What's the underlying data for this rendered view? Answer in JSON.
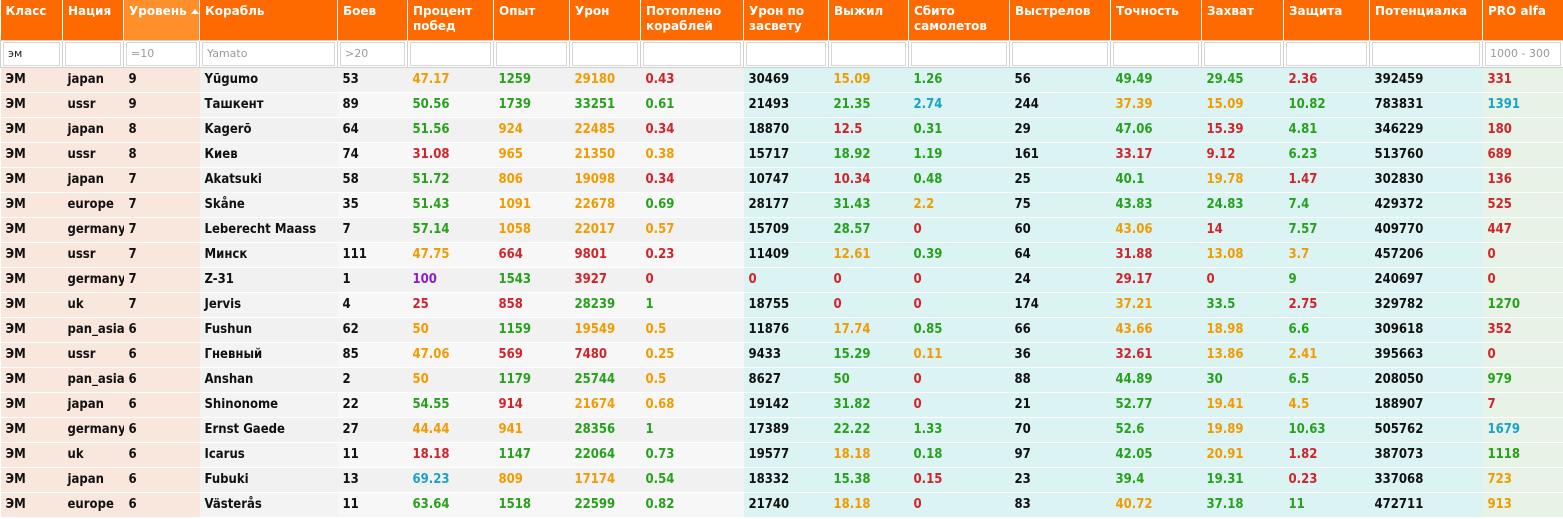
{
  "columns": [
    {
      "key": "class",
      "label": "Класс",
      "filter": {
        "value": "эм",
        "placeholder": ""
      }
    },
    {
      "key": "nation",
      "label": "Нация",
      "filter": {
        "value": "",
        "placeholder": ""
      }
    },
    {
      "key": "tier",
      "label": "Уровень",
      "filter": {
        "value": "",
        "placeholder": "=10"
      }
    },
    {
      "key": "ship",
      "label": "Корабль",
      "filter": {
        "value": "",
        "placeholder": "Yamato"
      }
    },
    {
      "key": "battles",
      "label": "Боев",
      "filter": {
        "value": "",
        "placeholder": ">20"
      }
    },
    {
      "key": "winrate",
      "label": "Процент побед",
      "filter": {
        "value": "",
        "placeholder": ""
      }
    },
    {
      "key": "xp",
      "label": "Опыт",
      "filter": {
        "value": "",
        "placeholder": ""
      }
    },
    {
      "key": "damage",
      "label": "Урон",
      "filter": {
        "value": "",
        "placeholder": ""
      }
    },
    {
      "key": "sunk",
      "label": "Потоплено кораблей",
      "filter": {
        "value": "",
        "placeholder": ""
      }
    },
    {
      "key": "spot_damage",
      "label": "Урон по засвету",
      "filter": {
        "value": "",
        "placeholder": ""
      }
    },
    {
      "key": "survived",
      "label": "Выжил",
      "filter": {
        "value": "",
        "placeholder": ""
      }
    },
    {
      "key": "planes",
      "label": "Сбито самолетов",
      "filter": {
        "value": "",
        "placeholder": ""
      }
    },
    {
      "key": "shots",
      "label": "Выстрелов",
      "filter": {
        "value": "",
        "placeholder": ""
      }
    },
    {
      "key": "accuracy",
      "label": "Точность",
      "filter": {
        "value": "",
        "placeholder": ""
      }
    },
    {
      "key": "capture",
      "label": "Захват",
      "filter": {
        "value": "",
        "placeholder": ""
      }
    },
    {
      "key": "defense",
      "label": "Защита",
      "filter": {
        "value": "",
        "placeholder": ""
      }
    },
    {
      "key": "potential",
      "label": "Потенциалка",
      "filter": {
        "value": "",
        "placeholder": ""
      }
    },
    {
      "key": "pro",
      "label": "PRO alfa",
      "filter": {
        "value": "",
        "placeholder": "1000 - 300"
      }
    }
  ],
  "sorted_column": "tier",
  "colors": {
    "header": "#ff6a00",
    "green": "#27a11c",
    "orange": "#f09b00",
    "red": "#d0242b",
    "blue": "#1aa3c8",
    "purple": "#8e1fc6"
  },
  "rows": [
    {
      "cells": [
        "ЭМ",
        "japan",
        "9",
        "Yūgumo",
        "53",
        "47.17",
        "1259",
        "29180",
        "0.43",
        "30469",
        "15.09",
        "1.26",
        "56",
        "49.49",
        "29.45",
        "2.36",
        "392459",
        "331"
      ],
      "tones": [
        "k",
        "k",
        "k",
        "k",
        "k",
        "o",
        "g",
        "o",
        "r",
        "k",
        "o",
        "g",
        "k",
        "g",
        "g",
        "r",
        "k",
        "r"
      ]
    },
    {
      "cells": [
        "ЭМ",
        "ussr",
        "9",
        "Ташкент",
        "89",
        "50.56",
        "1739",
        "33251",
        "0.61",
        "21493",
        "21.35",
        "2.74",
        "244",
        "37.39",
        "15.09",
        "10.82",
        "783831",
        "1391"
      ],
      "tones": [
        "k",
        "k",
        "k",
        "k",
        "k",
        "g",
        "g",
        "g",
        "g",
        "k",
        "g",
        "b",
        "k",
        "o",
        "o",
        "g",
        "k",
        "b"
      ]
    },
    {
      "cells": [
        "ЭМ",
        "japan",
        "8",
        "Kagerō",
        "64",
        "51.56",
        "924",
        "22485",
        "0.34",
        "18870",
        "12.5",
        "0.31",
        "29",
        "47.06",
        "15.39",
        "4.81",
        "346229",
        "180"
      ],
      "tones": [
        "k",
        "k",
        "k",
        "k",
        "k",
        "g",
        "o",
        "o",
        "r",
        "k",
        "r",
        "g",
        "k",
        "g",
        "r",
        "g",
        "k",
        "r"
      ]
    },
    {
      "cells": [
        "ЭМ",
        "ussr",
        "8",
        "Киев",
        "74",
        "31.08",
        "965",
        "21350",
        "0.38",
        "15717",
        "18.92",
        "1.19",
        "161",
        "33.17",
        "9.12",
        "6.23",
        "513760",
        "689"
      ],
      "tones": [
        "k",
        "k",
        "k",
        "k",
        "k",
        "r",
        "o",
        "o",
        "o",
        "k",
        "g",
        "g",
        "k",
        "r",
        "r",
        "g",
        "k",
        "r"
      ]
    },
    {
      "cells": [
        "ЭМ",
        "japan",
        "7",
        "Akatsuki",
        "58",
        "51.72",
        "806",
        "19098",
        "0.34",
        "10747",
        "10.34",
        "0.48",
        "25",
        "40.1",
        "19.78",
        "1.47",
        "302830",
        "136"
      ],
      "tones": [
        "k",
        "k",
        "k",
        "k",
        "k",
        "g",
        "o",
        "o",
        "r",
        "k",
        "r",
        "g",
        "k",
        "g",
        "o",
        "r",
        "k",
        "r"
      ]
    },
    {
      "cells": [
        "ЭМ",
        "europe",
        "7",
        "Skåne",
        "35",
        "51.43",
        "1091",
        "22678",
        "0.69",
        "28177",
        "31.43",
        "2.2",
        "75",
        "43.83",
        "24.83",
        "7.4",
        "429372",
        "525"
      ],
      "tones": [
        "k",
        "k",
        "k",
        "k",
        "k",
        "g",
        "o",
        "o",
        "g",
        "k",
        "g",
        "o",
        "k",
        "g",
        "g",
        "g",
        "k",
        "r"
      ]
    },
    {
      "cells": [
        "ЭМ",
        "germany",
        "7",
        "Leberecht Maass",
        "7",
        "57.14",
        "1058",
        "22017",
        "0.57",
        "15709",
        "28.57",
        "0",
        "60",
        "43.06",
        "14",
        "7.57",
        "409770",
        "447"
      ],
      "tones": [
        "k",
        "k",
        "k",
        "k",
        "k",
        "g",
        "o",
        "o",
        "o",
        "k",
        "g",
        "r",
        "k",
        "o",
        "r",
        "g",
        "k",
        "r"
      ]
    },
    {
      "cells": [
        "ЭМ",
        "ussr",
        "7",
        "Минск",
        "111",
        "47.75",
        "664",
        "9801",
        "0.23",
        "11409",
        "12.61",
        "0.39",
        "64",
        "31.88",
        "13.08",
        "3.7",
        "457206",
        "0"
      ],
      "tones": [
        "k",
        "k",
        "k",
        "k",
        "k",
        "o",
        "r",
        "r",
        "r",
        "k",
        "o",
        "g",
        "k",
        "r",
        "o",
        "o",
        "k",
        "r"
      ]
    },
    {
      "cells": [
        "ЭМ",
        "germany",
        "7",
        "Z-31",
        "1",
        "100",
        "1543",
        "3927",
        "0",
        "0",
        "0",
        "0",
        "24",
        "29.17",
        "0",
        "9",
        "240697",
        "0"
      ],
      "tones": [
        "k",
        "k",
        "k",
        "k",
        "k",
        "p",
        "g",
        "r",
        "r",
        "r",
        "r",
        "r",
        "k",
        "r",
        "r",
        "g",
        "k",
        "r"
      ]
    },
    {
      "cells": [
        "ЭМ",
        "uk",
        "7",
        "Jervis",
        "4",
        "25",
        "858",
        "28239",
        "1",
        "18755",
        "0",
        "0",
        "174",
        "37.21",
        "33.5",
        "2.75",
        "329782",
        "1270"
      ],
      "tones": [
        "k",
        "k",
        "k",
        "k",
        "k",
        "r",
        "r",
        "g",
        "g",
        "k",
        "r",
        "r",
        "k",
        "o",
        "g",
        "r",
        "k",
        "g"
      ]
    },
    {
      "cells": [
        "ЭМ",
        "pan_asia",
        "6",
        "Fushun",
        "62",
        "50",
        "1159",
        "19549",
        "0.5",
        "11876",
        "17.74",
        "0.85",
        "66",
        "43.66",
        "18.98",
        "6.6",
        "309618",
        "352"
      ],
      "tones": [
        "k",
        "k",
        "k",
        "k",
        "k",
        "o",
        "g",
        "o",
        "o",
        "k",
        "o",
        "g",
        "k",
        "o",
        "o",
        "g",
        "k",
        "r"
      ]
    },
    {
      "cells": [
        "ЭМ",
        "ussr",
        "6",
        "Гневный",
        "85",
        "47.06",
        "569",
        "7480",
        "0.25",
        "9433",
        "15.29",
        "0.11",
        "36",
        "32.61",
        "13.86",
        "2.41",
        "395663",
        "0"
      ],
      "tones": [
        "k",
        "k",
        "k",
        "k",
        "k",
        "o",
        "r",
        "r",
        "o",
        "k",
        "g",
        "o",
        "k",
        "r",
        "o",
        "o",
        "k",
        "r"
      ]
    },
    {
      "cells": [
        "ЭМ",
        "pan_asia",
        "6",
        "Anshan",
        "2",
        "50",
        "1179",
        "25744",
        "0.5",
        "8627",
        "50",
        "0",
        "88",
        "44.89",
        "30",
        "6.5",
        "208050",
        "979"
      ],
      "tones": [
        "k",
        "k",
        "k",
        "k",
        "k",
        "o",
        "g",
        "g",
        "o",
        "k",
        "g",
        "r",
        "k",
        "g",
        "g",
        "g",
        "k",
        "g"
      ]
    },
    {
      "cells": [
        "ЭМ",
        "japan",
        "6",
        "Shinonome",
        "22",
        "54.55",
        "914",
        "21674",
        "0.68",
        "19142",
        "31.82",
        "0",
        "21",
        "52.77",
        "19.41",
        "4.5",
        "188907",
        "7"
      ],
      "tones": [
        "k",
        "k",
        "k",
        "k",
        "k",
        "g",
        "r",
        "o",
        "o",
        "k",
        "g",
        "r",
        "k",
        "g",
        "o",
        "o",
        "k",
        "r"
      ]
    },
    {
      "cells": [
        "ЭМ",
        "germany",
        "6",
        "Ernst Gaede",
        "27",
        "44.44",
        "941",
        "28356",
        "1",
        "17389",
        "22.22",
        "1.33",
        "70",
        "52.6",
        "19.89",
        "10.63",
        "505762",
        "1679"
      ],
      "tones": [
        "k",
        "k",
        "k",
        "k",
        "k",
        "o",
        "o",
        "g",
        "g",
        "k",
        "g",
        "g",
        "k",
        "g",
        "o",
        "g",
        "k",
        "b"
      ]
    },
    {
      "cells": [
        "ЭМ",
        "uk",
        "6",
        "Icarus",
        "11",
        "18.18",
        "1147",
        "22064",
        "0.73",
        "19577",
        "18.18",
        "0.18",
        "97",
        "42.05",
        "20.91",
        "1.82",
        "387073",
        "1118"
      ],
      "tones": [
        "k",
        "k",
        "k",
        "k",
        "k",
        "r",
        "g",
        "g",
        "g",
        "k",
        "o",
        "g",
        "k",
        "g",
        "o",
        "r",
        "k",
        "g"
      ]
    },
    {
      "cells": [
        "ЭМ",
        "japan",
        "6",
        "Fubuki",
        "13",
        "69.23",
        "809",
        "17174",
        "0.54",
        "18332",
        "15.38",
        "0.15",
        "23",
        "39.4",
        "19.31",
        "0.23",
        "337068",
        "723"
      ],
      "tones": [
        "k",
        "k",
        "k",
        "k",
        "k",
        "b",
        "o",
        "o",
        "g",
        "k",
        "g",
        "r",
        "k",
        "g",
        "g",
        "r",
        "k",
        "o"
      ]
    },
    {
      "cells": [
        "ЭМ",
        "europe",
        "6",
        "Västerås",
        "11",
        "63.64",
        "1518",
        "22599",
        "0.82",
        "21740",
        "18.18",
        "0",
        "83",
        "40.72",
        "37.18",
        "11",
        "472711",
        "913"
      ],
      "tones": [
        "k",
        "k",
        "k",
        "k",
        "k",
        "g",
        "g",
        "g",
        "g",
        "k",
        "o",
        "r",
        "k",
        "o",
        "g",
        "g",
        "k",
        "o"
      ]
    }
  ]
}
